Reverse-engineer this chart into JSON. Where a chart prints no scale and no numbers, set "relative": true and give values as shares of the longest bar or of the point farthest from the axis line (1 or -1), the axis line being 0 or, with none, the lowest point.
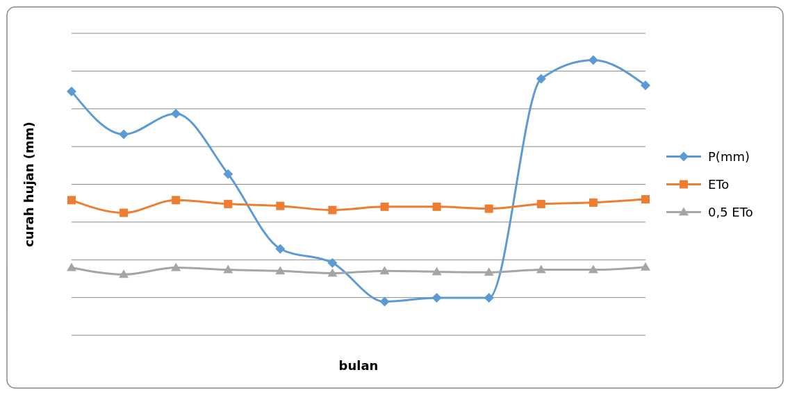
{
  "chart_data": {
    "type": "line",
    "xlabel": "bulan",
    "ylabel": "curah hujan (mm)",
    "relative": true,
    "grid": "y",
    "legend": "right",
    "categories": [
      null,
      null,
      null,
      null,
      null,
      null,
      null,
      null,
      null,
      null,
      null,
      null
    ],
    "series": [
      {
        "name": "P(mm)",
        "color": "#5b9bd5",
        "marker": "diamond",
        "values": [
          0.886,
          0.73,
          0.805,
          0.586,
          0.314,
          0.263,
          0.122,
          0.136,
          0.136,
          0.932,
          1,
          0.908
        ]
      },
      {
        "name": "ETo",
        "color": "#ed7d31",
        "marker": "square",
        "values": [
          0.491,
          0.445,
          0.491,
          0.477,
          0.47,
          0.455,
          0.467,
          0.467,
          0.46,
          0.477,
          0.482,
          0.494
        ]
      },
      {
        "name": "0,5 ETo",
        "color": "#a5a5a5",
        "marker": "triangle",
        "values": [
          0.246,
          0.221,
          0.246,
          0.238,
          0.234,
          0.226,
          0.234,
          0.231,
          0.229,
          0.238,
          0.238,
          0.248
        ]
      }
    ]
  }
}
